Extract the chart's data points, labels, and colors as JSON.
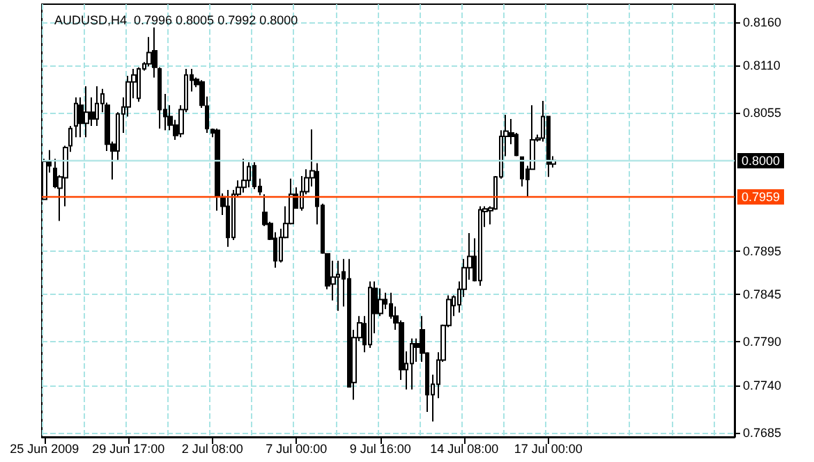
{
  "chart_data": {
    "type": "candlestick",
    "title": "AUDUSD,H4  0.7996 0.8005 0.7992 0.8000",
    "categories": [
      "25 Jun 2009",
      null,
      null,
      null,
      null,
      null,
      null,
      null,
      null,
      null,
      null,
      null,
      null,
      null,
      null,
      null,
      "29 Jun 17:00",
      null,
      null,
      null,
      null,
      null,
      null,
      null,
      null,
      null,
      null,
      null,
      null,
      null,
      null,
      null,
      "2 Jul 08:00",
      null,
      null,
      null,
      null,
      null,
      null,
      null,
      null,
      null,
      null,
      null,
      null,
      null,
      null,
      null,
      "7 Jul 00:00",
      null,
      null,
      null,
      null,
      null,
      null,
      null,
      null,
      null,
      null,
      null,
      null,
      null,
      null,
      null,
      "9 Jul 16:00",
      null,
      null,
      null,
      null,
      null,
      null,
      null,
      null,
      null,
      null,
      null,
      null,
      null,
      null,
      null,
      "14 Jul 08:00",
      null,
      null,
      null,
      null,
      null,
      null,
      null,
      null,
      null,
      null,
      null,
      null,
      null,
      null,
      null,
      "17 Jul 00:00",
      null,
      null,
      null,
      null,
      null,
      null,
      null,
      null,
      null,
      null,
      null,
      null,
      null,
      null,
      null,
      null,
      null,
      null,
      null,
      null,
      null,
      null,
      null,
      null,
      null,
      null,
      null,
      null,
      null,
      null,
      null,
      null,
      null,
      null,
      null
    ],
    "ohlc": [
      [
        0.7955,
        0.8002,
        0.7955,
        0.7999
      ],
      [
        0.7999,
        0.8012,
        0.7986,
        0.7994
      ],
      [
        0.7991,
        0.8002,
        0.7968,
        0.797
      ],
      [
        0.7968,
        0.7983,
        0.793,
        0.7981
      ],
      [
        0.798,
        0.8017,
        0.7947,
        0.8015
      ],
      [
        0.8017,
        0.804,
        0.801,
        0.8037
      ],
      [
        0.804,
        0.8073,
        0.8027,
        0.8066
      ],
      [
        0.8064,
        0.8073,
        0.8027,
        0.8043
      ],
      [
        0.8043,
        0.8086,
        0.8027,
        0.8056
      ],
      [
        0.8056,
        0.8073,
        0.804,
        0.8048
      ],
      [
        0.8048,
        0.8086,
        0.804,
        0.8066
      ],
      [
        0.8066,
        0.8083,
        0.8056,
        0.8077
      ],
      [
        0.8064,
        0.8067,
        0.8011,
        0.8019
      ],
      [
        0.8019,
        0.8022,
        0.7978,
        0.8011
      ],
      [
        0.8011,
        0.8056,
        0.8,
        0.8054
      ],
      [
        0.8054,
        0.8073,
        0.8032,
        0.8062
      ],
      [
        0.8062,
        0.8098,
        0.8051,
        0.8091
      ],
      [
        0.8091,
        0.8106,
        0.8072,
        0.8099
      ],
      [
        0.8072,
        0.8108,
        0.8068,
        0.8106
      ],
      [
        0.8106,
        0.8114,
        0.8104,
        0.8112
      ],
      [
        0.8112,
        0.8143,
        0.8109,
        0.8125
      ],
      [
        0.8127,
        0.8154,
        0.8096,
        0.8108
      ],
      [
        0.8106,
        0.8108,
        0.8037,
        0.8059
      ],
      [
        0.8059,
        0.8077,
        0.8035,
        0.8051
      ],
      [
        0.8051,
        0.8064,
        0.8035,
        0.8041
      ],
      [
        0.8041,
        0.8047,
        0.8024,
        0.8029
      ],
      [
        0.8031,
        0.8064,
        0.8027,
        0.8059
      ],
      [
        0.8059,
        0.8106,
        0.8056,
        0.8099
      ],
      [
        0.8099,
        0.8106,
        0.808,
        0.8093
      ],
      [
        0.8094,
        0.8096,
        0.8085,
        0.8088
      ],
      [
        0.8091,
        0.8093,
        0.8061,
        0.8064
      ],
      [
        0.8063,
        0.8074,
        0.8032,
        0.8037
      ],
      [
        0.8036,
        0.8037,
        0.8027,
        0.8032
      ],
      [
        0.8035,
        0.8037,
        0.7942,
        0.7958
      ],
      [
        0.7958,
        0.7962,
        0.7937,
        0.7947
      ],
      [
        0.7947,
        0.7966,
        0.79,
        0.7911
      ],
      [
        0.7911,
        0.7966,
        0.7908,
        0.7961
      ],
      [
        0.7961,
        0.7977,
        0.7958,
        0.7969
      ],
      [
        0.7969,
        0.8002,
        0.7963,
        0.7977
      ],
      [
        0.7977,
        0.7998,
        0.7969,
        0.7993
      ],
      [
        0.7994,
        0.7998,
        0.7967,
        0.797
      ],
      [
        0.797,
        0.7979,
        0.796,
        0.7964
      ],
      [
        0.794,
        0.7961,
        0.7924,
        0.7926
      ],
      [
        0.7927,
        0.7929,
        0.7908,
        0.7909
      ],
      [
        0.791,
        0.7917,
        0.7876,
        0.7884
      ],
      [
        0.7884,
        0.7921,
        0.7882,
        0.7911
      ],
      [
        0.7911,
        0.7947,
        0.791,
        0.7927
      ],
      [
        0.7927,
        0.7979,
        0.7926,
        0.7961
      ],
      [
        0.7961,
        0.7969,
        0.7945,
        0.7945
      ],
      [
        0.7945,
        0.7982,
        0.7942,
        0.7964
      ],
      [
        0.7964,
        0.799,
        0.7961,
        0.798
      ],
      [
        0.798,
        0.8036,
        0.797,
        0.7988
      ],
      [
        0.7987,
        0.7997,
        0.7926,
        0.7947
      ],
      [
        0.7948,
        0.795,
        0.7892,
        0.7893
      ],
      [
        0.7892,
        0.7892,
        0.7851,
        0.7855
      ],
      [
        0.7857,
        0.7884,
        0.7838,
        0.7865
      ],
      [
        0.7865,
        0.7884,
        0.7826,
        0.7868
      ],
      [
        0.7871,
        0.7886,
        0.7831,
        0.7863
      ],
      [
        0.7863,
        0.7886,
        0.7738,
        0.7738
      ],
      [
        0.7743,
        0.7804,
        0.7723,
        0.7795
      ],
      [
        0.7795,
        0.782,
        0.7791,
        0.7812
      ],
      [
        0.7811,
        0.782,
        0.7778,
        0.7787
      ],
      [
        0.7787,
        0.786,
        0.7783,
        0.7853
      ],
      [
        0.7852,
        0.786,
        0.78,
        0.7823
      ],
      [
        0.7823,
        0.7852,
        0.782,
        0.7839
      ],
      [
        0.7839,
        0.7847,
        0.7828,
        0.7834
      ],
      [
        0.7834,
        0.7847,
        0.7817,
        0.782
      ],
      [
        0.782,
        0.7831,
        0.7804,
        0.7812
      ],
      [
        0.7812,
        0.7815,
        0.7746,
        0.7758
      ],
      [
        0.7758,
        0.7779,
        0.7735,
        0.7765
      ],
      [
        0.7765,
        0.7794,
        0.7735,
        0.7788
      ],
      [
        0.7788,
        0.7794,
        0.7767,
        0.7784
      ],
      [
        0.7804,
        0.782,
        0.7767,
        0.7777
      ],
      [
        0.7777,
        0.7778,
        0.7709,
        0.7729
      ],
      [
        0.7729,
        0.7752,
        0.7698,
        0.7741
      ],
      [
        0.7741,
        0.7778,
        0.7725,
        0.7769
      ],
      [
        0.7769,
        0.781,
        0.7767,
        0.7809
      ],
      [
        0.7809,
        0.7844,
        0.7807,
        0.7839
      ],
      [
        0.7832,
        0.7844,
        0.782,
        0.7842
      ],
      [
        0.7833,
        0.786,
        0.7824,
        0.7851
      ],
      [
        0.7851,
        0.7886,
        0.7842,
        0.7876
      ],
      [
        0.7876,
        0.7916,
        0.7862,
        0.7889
      ],
      [
        0.7889,
        0.791,
        0.786,
        0.7861
      ],
      [
        0.7861,
        0.7947,
        0.7855,
        0.7943
      ],
      [
        0.7941,
        0.7947,
        0.7923,
        0.7944
      ],
      [
        0.7942,
        0.7947,
        0.7926,
        0.7945
      ],
      [
        0.7944,
        0.7982,
        0.7943,
        0.7981
      ],
      [
        0.7981,
        0.8035,
        0.7979,
        0.8028
      ],
      [
        0.8028,
        0.8053,
        0.8005,
        0.8034
      ],
      [
        0.8032,
        0.8048,
        0.8019,
        0.8028
      ],
      [
        0.803,
        0.8032,
        0.8005,
        0.8006
      ],
      [
        0.8004,
        0.8004,
        0.797,
        0.7979
      ],
      [
        0.799,
        0.7994,
        0.7957,
        0.7978
      ],
      [
        0.799,
        0.8064,
        0.7989,
        0.8024
      ],
      [
        0.8024,
        0.803,
        0.8022,
        0.8026
      ],
      [
        0.8026,
        0.8069,
        0.8022,
        0.8051
      ],
      [
        0.8051,
        0.8051,
        0.7981,
        0.7996
      ],
      [
        0.7996,
        0.8005,
        0.7992,
        0.8
      ],
      null,
      null,
      null,
      null,
      null,
      null,
      null,
      null,
      null,
      null,
      null,
      null,
      null,
      null,
      null,
      null,
      null,
      null,
      null,
      null,
      null,
      null,
      null,
      null,
      null,
      null,
      null,
      null,
      null,
      null,
      null,
      null,
      null,
      null
    ],
    "color": "#000000",
    "ylim": [
      0.768,
      0.8181
    ],
    "yticks": [
      {
        "value": 0.7685,
        "label": "0.7685"
      },
      {
        "value": 0.774,
        "label": "0.7740"
      },
      {
        "value": 0.779,
        "label": "0.7790"
      },
      {
        "value": 0.7845,
        "label": "0.7845"
      },
      {
        "value": 0.7895,
        "label": "0.7895"
      },
      {
        "value": 0.8055,
        "label": "0.8055"
      },
      {
        "value": 0.811,
        "label": "0.8110"
      },
      {
        "value": 0.816,
        "label": "0.8160"
      }
    ],
    "grid": true,
    "ref_lines": [
      {
        "axis": "y",
        "value": 0.8,
        "label": "0.8000",
        "color": "#b4e6e6"
      },
      {
        "axis": "y",
        "value": 0.7959,
        "label": "0.7959",
        "color": "#ff4500"
      }
    ]
  }
}
